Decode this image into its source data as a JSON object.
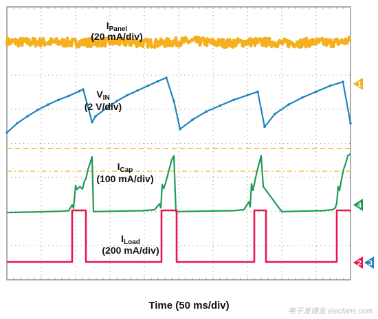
{
  "chart_data": {
    "type": "line",
    "title": "",
    "xlabel": "Time (50 ms/div)",
    "grid": true,
    "grid_divisions": {
      "x": 10,
      "y": 8
    },
    "x_unit": "ms",
    "xlim": [
      0,
      500
    ],
    "series": [
      {
        "name": "IPanel",
        "label_main": "I",
        "label_sub": "Panel",
        "scale": "(20 mA/div)",
        "channel": "1",
        "color": "#f5b01f",
        "x": [
          0,
          25,
          50,
          75,
          100,
          125,
          150,
          175,
          200,
          225,
          250,
          275,
          300,
          325,
          350,
          375,
          400,
          425,
          450,
          475,
          500
        ],
        "y": [
          2.45,
          2.4,
          2.4,
          2.38,
          2.35,
          2.38,
          2.42,
          2.4,
          2.32,
          2.3,
          2.45,
          2.5,
          2.35,
          2.3,
          2.42,
          2.4,
          2.3,
          2.32,
          2.4,
          2.35,
          2.55
        ]
      },
      {
        "name": "VIN",
        "label_main": "V",
        "label_sub": "IN",
        "scale": "(2 V/div)",
        "channel": "",
        "color": "#1e84c0",
        "x": [
          0,
          15,
          30,
          45,
          60,
          75,
          90,
          105,
          111,
          124,
          129,
          145,
          160,
          175,
          190,
          205,
          220,
          232,
          243,
          252,
          270,
          290,
          310,
          330,
          350,
          365,
          375,
          390,
          410,
          430,
          450,
          470,
          489,
          500
        ],
        "y": [
          1.15,
          1.55,
          1.85,
          2.12,
          2.35,
          2.55,
          2.72,
          2.92,
          3.0,
          1.6,
          1.85,
          2.2,
          2.5,
          2.75,
          2.95,
          3.15,
          3.35,
          3.5,
          2.5,
          1.3,
          1.7,
          2.05,
          2.3,
          2.55,
          2.75,
          2.9,
          1.4,
          1.95,
          2.35,
          2.65,
          2.9,
          3.15,
          3.32,
          1.55
        ]
      },
      {
        "name": "ICap",
        "label_main": "I",
        "label_sub": "Cap",
        "scale": "(100 mA/div)",
        "channel": "4",
        "color": "#1f9a54",
        "x": [
          0,
          40,
          80,
          90,
          95,
          97,
          100,
          102,
          106,
          110,
          113,
          115,
          118,
          121,
          124,
          126,
          200,
          215,
          222,
          224,
          226,
          228,
          231,
          234,
          237,
          240,
          243,
          246,
          330,
          345,
          352,
          354,
          356,
          358,
          361,
          364,
          367,
          370,
          373,
          400,
          460,
          474,
          478,
          480,
          482,
          484,
          487,
          490,
          493,
          496,
          500
        ],
        "y": [
          -0.15,
          -0.12,
          -0.08,
          -0.05,
          0.25,
          0.08,
          1.25,
          1.05,
          1.2,
          1.08,
          1.5,
          1.6,
          2.1,
          2.4,
          2.75,
          -0.1,
          -0.05,
          0.0,
          0.3,
          0.1,
          1.3,
          1.1,
          1.4,
          1.8,
          2.2,
          2.6,
          2.8,
          -0.1,
          -0.05,
          0.0,
          0.4,
          0.15,
          1.35,
          1.0,
          1.5,
          2.0,
          2.4,
          2.8,
          1.2,
          -0.1,
          -0.05,
          0.0,
          0.1,
          0.35,
          1.2,
          1.0,
          1.6,
          2.1,
          2.4,
          2.8,
          2.9
        ]
      },
      {
        "name": "ILoad",
        "label_main": "I",
        "label_sub": "Load",
        "scale": "(200 mA/div)",
        "channel": "2",
        "color": "#e8174f",
        "x": [
          0,
          95,
          95,
          115,
          115,
          225,
          225,
          247,
          247,
          360,
          360,
          377,
          377,
          480,
          480,
          500
        ],
        "y": [
          -3.0,
          -3.0,
          0.0,
          0.0,
          -3.0,
          -3.0,
          0.0,
          0.0,
          -3.0,
          -3.0,
          0.0,
          0.0,
          -3.0,
          -3.0,
          0.0,
          0.0
        ]
      }
    ],
    "channel_markers": [
      {
        "label": "1",
        "color": "#f5b01f"
      },
      {
        "label": "4",
        "color": "#1f9a54"
      },
      {
        "label": "2",
        "color": "#e8174f"
      },
      {
        "label": "3",
        "color": "#1e84c0"
      }
    ]
  },
  "watermark": "电子发烧友 elecfans.com"
}
